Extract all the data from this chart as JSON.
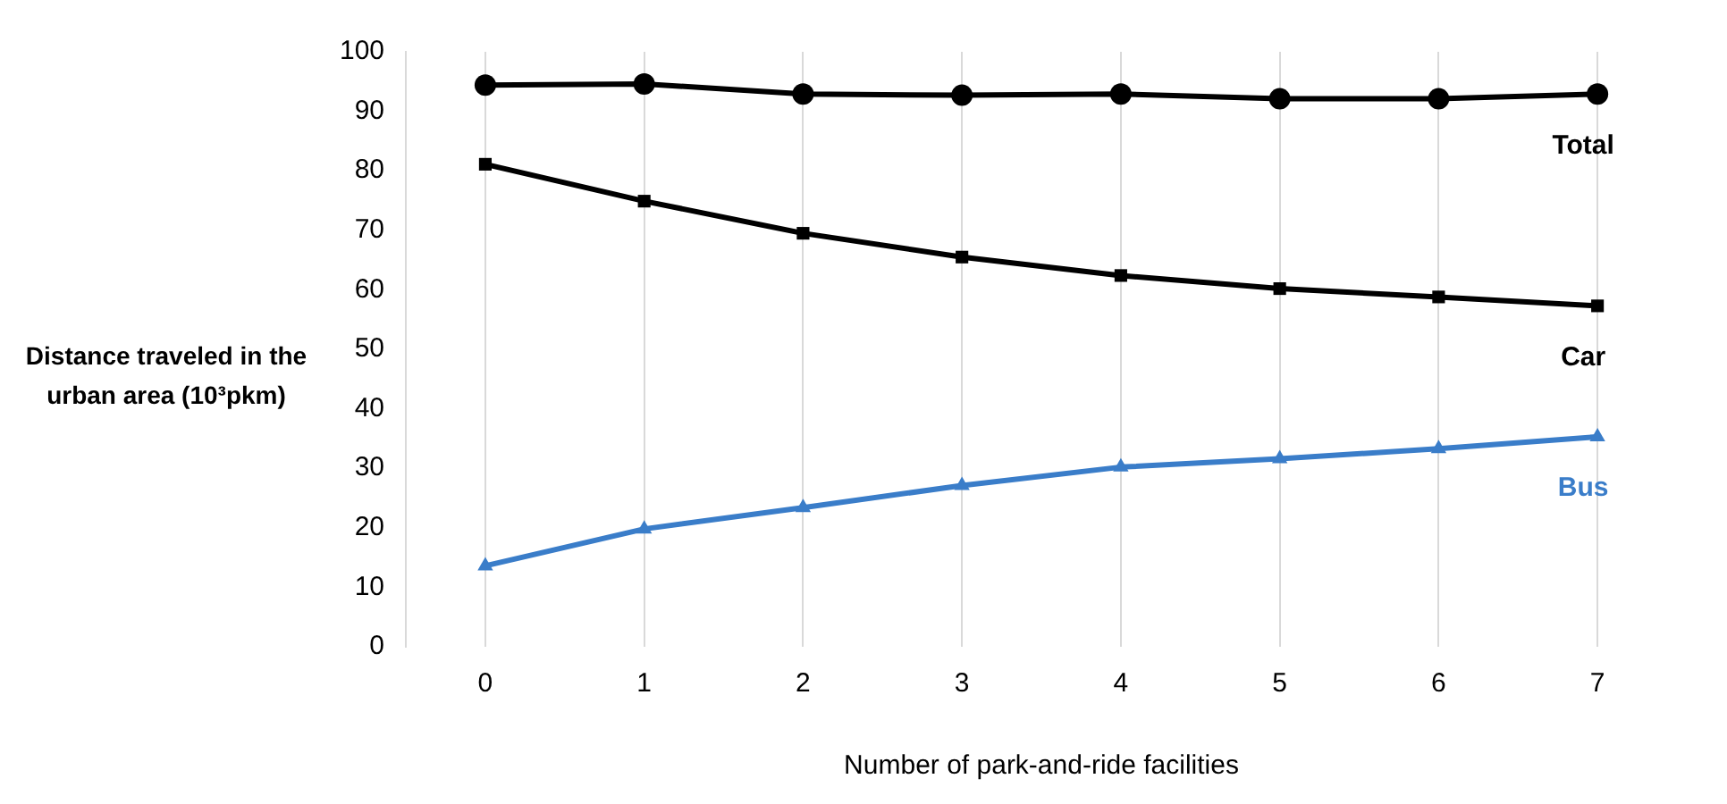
{
  "chart_data": {
    "type": "line",
    "xlabel": "Number of park-and-ride facilities",
    "ylabel": "Distance  traveled in the urban area (10³pkm)",
    "categories": [
      "0",
      "1",
      "2",
      "3",
      "4",
      "5",
      "6",
      "7"
    ],
    "ylim": [
      0,
      100
    ],
    "yticks": [
      0,
      10,
      20,
      30,
      40,
      50,
      60,
      70,
      80,
      90,
      100
    ],
    "grid": "x",
    "legend": false,
    "line_style": "solid",
    "series": [
      {
        "name": "Total",
        "color": "#000000",
        "marker": "circle",
        "values": [
          94.4,
          94.6,
          92.9,
          92.7,
          92.9,
          92.1,
          92.1,
          92.9
        ]
      },
      {
        "name": "Car",
        "color": "#000000",
        "marker": "square",
        "values": [
          81.1,
          74.9,
          69.5,
          65.5,
          62.4,
          60.2,
          58.8,
          57.3
        ]
      },
      {
        "name": "Bus",
        "color": "#3a7dc9",
        "marker": "triangle",
        "values": [
          13.6,
          19.8,
          23.4,
          27.1,
          30.2,
          31.6,
          33.3,
          35.3
        ]
      }
    ]
  }
}
